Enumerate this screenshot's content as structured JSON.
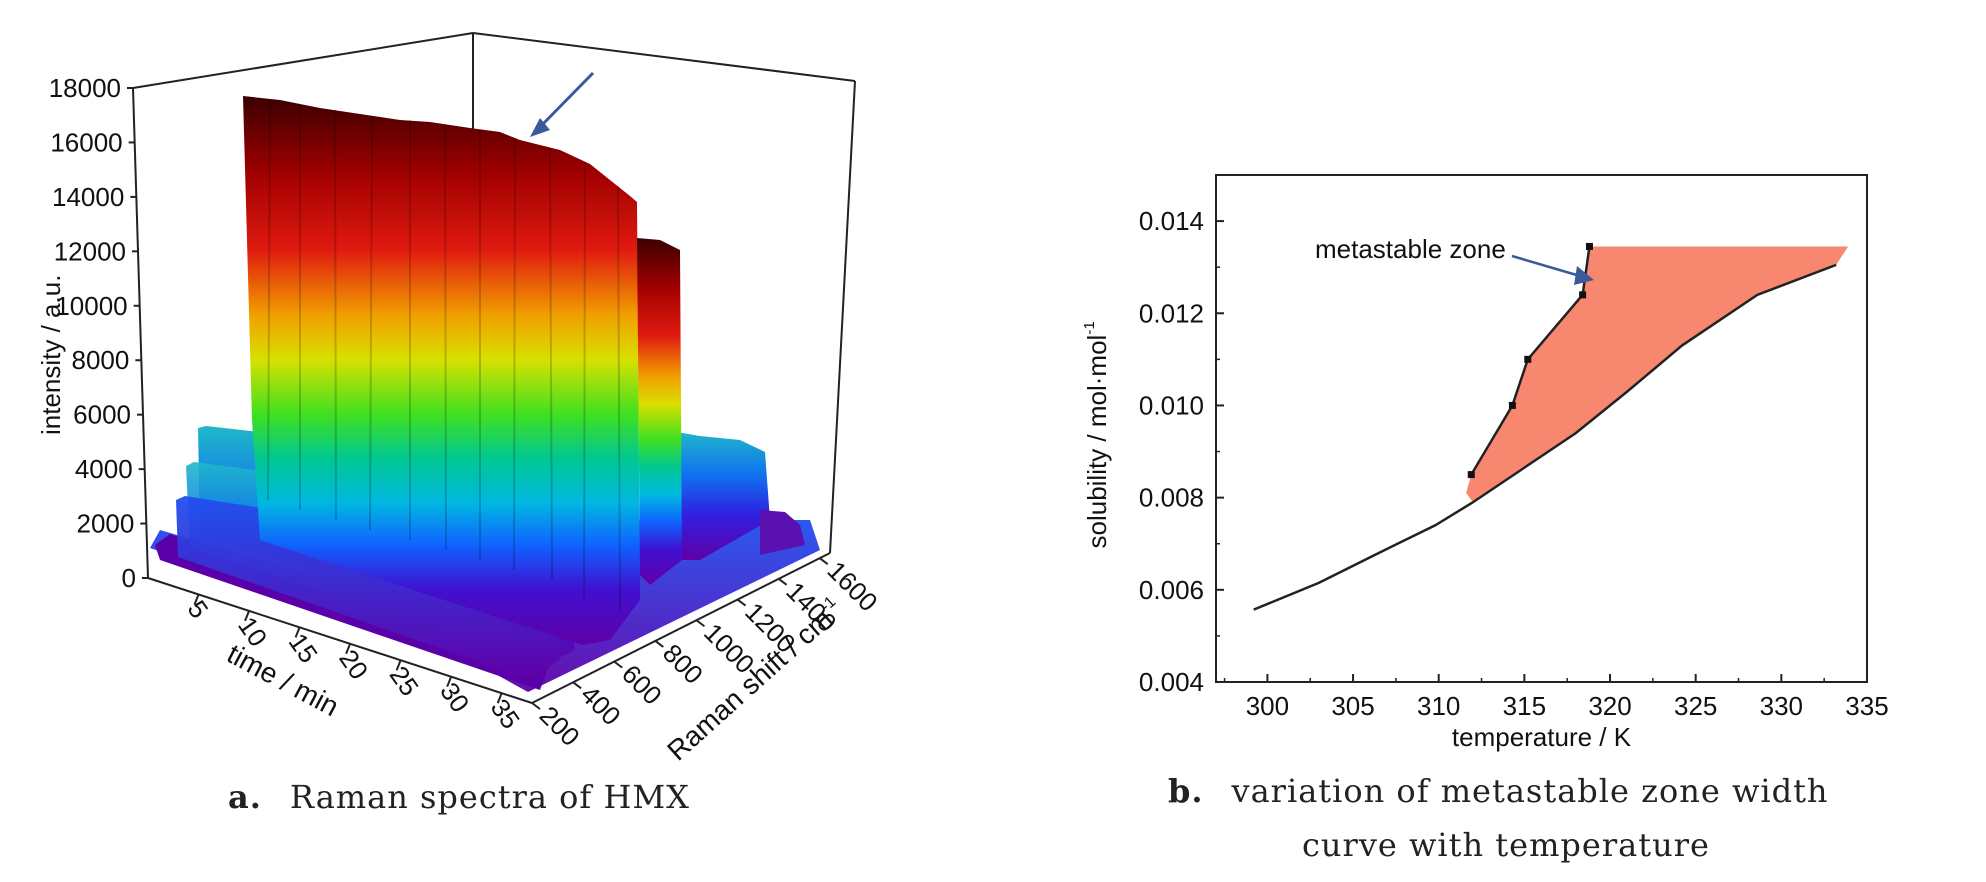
{
  "panel_a": {
    "caption_tag": "a.",
    "caption_text": "Raman spectra of HMX",
    "colors": {
      "frame": "#222222",
      "arrow": "#3a5a9a",
      "surface_low": "#5a00a0",
      "surface_mid_1": "#0030ff",
      "surface_mid_2": "#10d0d0",
      "surface_mid_3": "#30e030",
      "surface_mid_4": "#e0e000",
      "surface_high_1": "#e01010",
      "surface_high_2": "#400000"
    }
  },
  "panel_b": {
    "caption_tag": "b.",
    "caption_line1": "variation of metastable zone width",
    "caption_line2": "curve with temperature",
    "colors": {
      "zone_fill": "#f7876f",
      "line": "#222222",
      "arrow": "#3a5a9a"
    }
  },
  "chart_data": [
    {
      "type": "surface3d",
      "ylabel": "intensity / a.u.",
      "xlabel": "time / min",
      "zlabel": "Raman shift / cm",
      "zlabel_superscript": "-1",
      "yticks": [
        "0",
        "2000",
        "4000",
        "6000",
        "8000",
        "10000",
        "12000",
        "14000",
        "16000",
        "18000"
      ],
      "xticks": [
        "5",
        "10",
        "15",
        "20",
        "25",
        "30",
        "35"
      ],
      "zticks": [
        "200",
        "400",
        "600",
        "800",
        "1000",
        "1200",
        "1400",
        "1600"
      ],
      "ylim": [
        0,
        18000
      ],
      "xlim": [
        0,
        38
      ],
      "zlim": [
        200,
        1650
      ],
      "peaks": [
        {
          "raman_shift": 880,
          "max_intensity": 16500
        },
        {
          "raman_shift": 950,
          "max_intensity": 12000
        },
        {
          "raman_shift": 620,
          "max_intensity": 5000
        },
        {
          "raman_shift": 1280,
          "max_intensity": 4500
        },
        {
          "raman_shift": 1550,
          "max_intensity": 1500
        }
      ]
    },
    {
      "type": "line",
      "xlabel": "temperature / K",
      "ylabel": "solubility / mol·mol",
      "ylabel_superscript": "-1",
      "xlim": [
        297,
        335
      ],
      "ylim": [
        0.004,
        0.015
      ],
      "xticks": [
        "300",
        "305",
        "310",
        "315",
        "320",
        "325",
        "330",
        "335"
      ],
      "yticks": [
        "0.004",
        "0.006",
        "0.008",
        "0.010",
        "0.012",
        "0.014"
      ],
      "annotation": "metastable zone",
      "series": [
        {
          "x": [
            299.2,
            303,
            306.5,
            309.8,
            312,
            314.8,
            318,
            321,
            324.2,
            328.6,
            333.2
          ],
          "y": [
            0.00557,
            0.00615,
            0.0068,
            0.0074,
            0.0079,
            0.0086,
            0.0094,
            0.0103,
            0.0113,
            0.0124,
            0.01305
          ]
        },
        {
          "x": [
            311.9,
            314.3,
            315.2,
            318.4,
            318.8
          ],
          "y": [
            0.0085,
            0.01,
            0.011,
            0.0124,
            0.01345
          ]
        }
      ]
    }
  ]
}
